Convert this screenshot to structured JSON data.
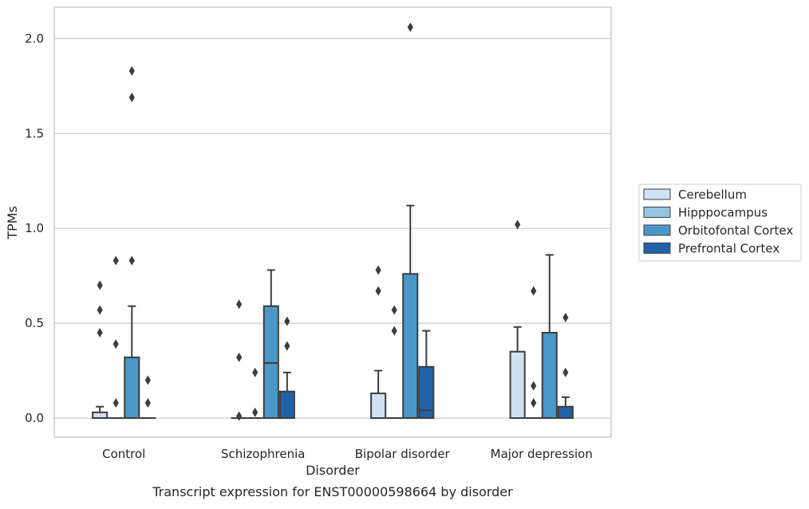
{
  "caption": "Transcript expression for ENST00000598664 by disorder",
  "chart_data": {
    "type": "box",
    "title": "",
    "xlabel": "Disorder",
    "ylabel": "TPMs",
    "ylim": [
      -0.1,
      2.16
    ],
    "yticks": [
      0.0,
      0.5,
      1.0,
      1.5,
      2.0
    ],
    "ytick_labels": [
      "0.0",
      "0.5",
      "1.0",
      "1.5",
      "2.0"
    ],
    "grid": "y",
    "legend_position": "right",
    "categories": [
      "Control",
      "Schizophrenia",
      "Bipolar disorder",
      "Major depression"
    ],
    "series": [
      {
        "name": "Cerebellum",
        "color": "#d0e1f2",
        "boxes": [
          {
            "q1": 0.0,
            "median": 0.0,
            "q3": 0.03,
            "whisker_low": 0.0,
            "whisker_high": 0.06,
            "outliers": [
              0.45,
              0.57,
              0.7
            ]
          },
          {
            "q1": 0.0,
            "median": 0.0,
            "q3": 0.0,
            "whisker_low": 0.0,
            "whisker_high": 0.0,
            "outliers": [
              0.01,
              0.32,
              0.6
            ]
          },
          {
            "q1": 0.0,
            "median": 0.0,
            "q3": 0.13,
            "whisker_low": 0.0,
            "whisker_high": 0.25,
            "outliers": [
              0.67,
              0.78
            ]
          },
          {
            "q1": 0.0,
            "median": 0.0,
            "q3": 0.35,
            "whisker_low": 0.0,
            "whisker_high": 0.48,
            "outliers": [
              1.02
            ]
          }
        ]
      },
      {
        "name": "Hipppocampus",
        "color": "#94c4df",
        "boxes": [
          {
            "q1": 0.0,
            "median": 0.0,
            "q3": 0.0,
            "whisker_low": 0.0,
            "whisker_high": 0.0,
            "outliers": [
              0.08,
              0.39,
              0.83
            ]
          },
          {
            "q1": 0.0,
            "median": 0.0,
            "q3": 0.0,
            "whisker_low": 0.0,
            "whisker_high": 0.0,
            "outliers": [
              0.03,
              0.24
            ]
          },
          {
            "q1": 0.0,
            "median": 0.0,
            "q3": 0.0,
            "whisker_low": 0.0,
            "whisker_high": 0.0,
            "outliers": [
              0.46,
              0.57
            ]
          },
          {
            "q1": 0.0,
            "median": 0.0,
            "q3": 0.0,
            "whisker_low": 0.0,
            "whisker_high": 0.0,
            "outliers": [
              0.08,
              0.17,
              0.67
            ]
          }
        ]
      },
      {
        "name": "Orbitofontal Cortex",
        "color": "#4a98c9",
        "boxes": [
          {
            "q1": 0.0,
            "median": 0.0,
            "q3": 0.32,
            "whisker_low": 0.0,
            "whisker_high": 0.59,
            "outliers": [
              0.83,
              1.69,
              1.83
            ]
          },
          {
            "q1": 0.0,
            "median": 0.29,
            "q3": 0.59,
            "whisker_low": 0.0,
            "whisker_high": 0.78,
            "outliers": []
          },
          {
            "q1": 0.0,
            "median": 0.0,
            "q3": 0.76,
            "whisker_low": 0.0,
            "whisker_high": 1.12,
            "outliers": [
              2.06
            ]
          },
          {
            "q1": 0.0,
            "median": 0.0,
            "q3": 0.45,
            "whisker_low": 0.0,
            "whisker_high": 0.86,
            "outliers": []
          }
        ]
      },
      {
        "name": "Prefrontal Cortex",
        "color": "#2163aa",
        "boxes": [
          {
            "q1": 0.0,
            "median": 0.0,
            "q3": 0.0,
            "whisker_low": 0.0,
            "whisker_high": 0.0,
            "outliers": [
              0.08,
              0.2
            ]
          },
          {
            "q1": 0.0,
            "median": 0.0,
            "q3": 0.14,
            "whisker_low": 0.0,
            "whisker_high": 0.24,
            "outliers": [
              0.38,
              0.51
            ]
          },
          {
            "q1": 0.0,
            "median": 0.04,
            "q3": 0.27,
            "whisker_low": 0.0,
            "whisker_high": 0.46,
            "outliers": []
          },
          {
            "q1": 0.0,
            "median": 0.0,
            "q3": 0.06,
            "whisker_low": 0.0,
            "whisker_high": 0.11,
            "outliers": [
              0.24,
              0.53
            ]
          }
        ]
      }
    ]
  }
}
